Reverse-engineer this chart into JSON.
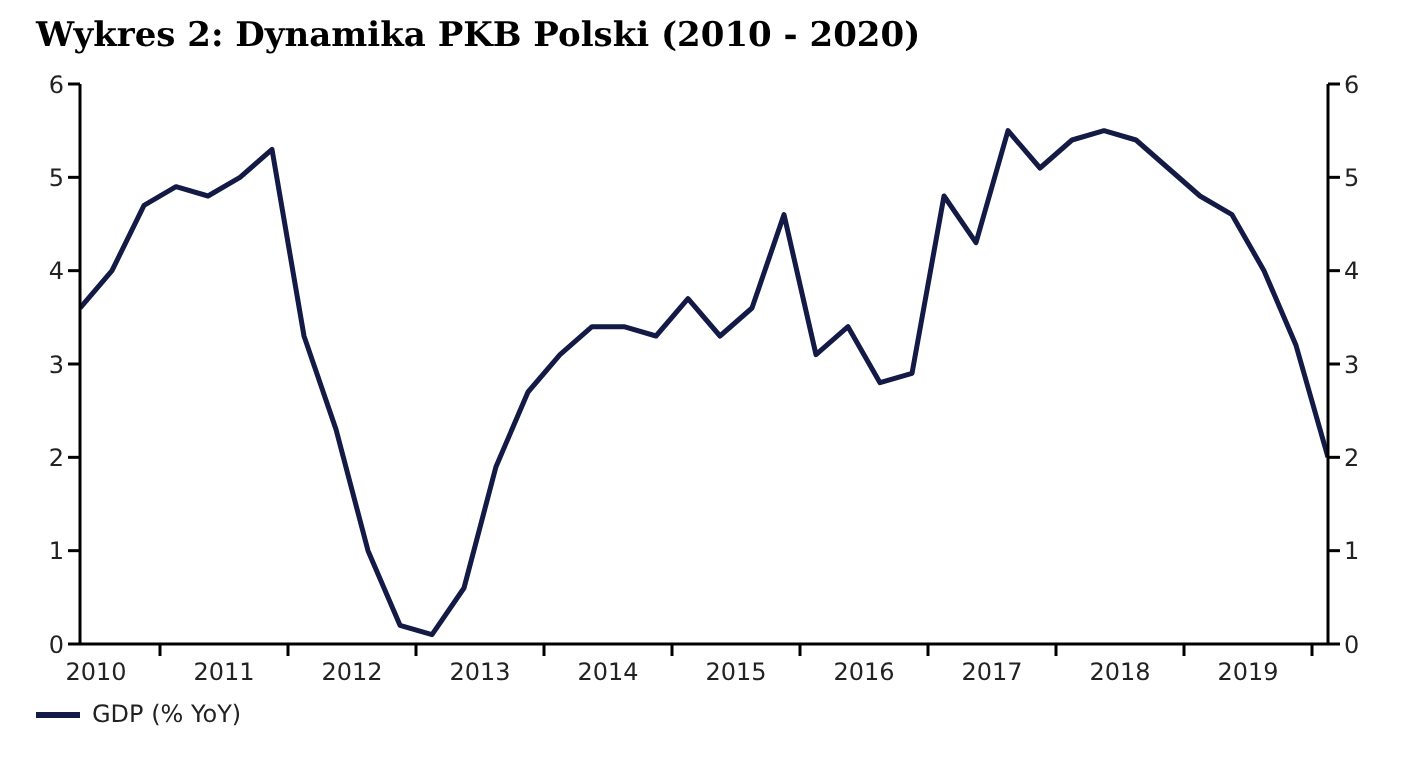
{
  "chart_data": {
    "type": "line",
    "title": "Wykres 2: Dynamika PKB Polski (2010 - 2020)",
    "x": [
      2010.375,
      2010.625,
      2010.875,
      2011.125,
      2011.375,
      2011.625,
      2011.875,
      2012.125,
      2012.375,
      2012.625,
      2012.875,
      2013.125,
      2013.375,
      2013.625,
      2013.875,
      2014.125,
      2014.375,
      2014.625,
      2014.875,
      2015.125,
      2015.375,
      2015.625,
      2015.875,
      2016.125,
      2016.375,
      2016.625,
      2016.875,
      2017.125,
      2017.375,
      2017.625,
      2017.875,
      2018.125,
      2018.375,
      2018.625,
      2018.875,
      2019.125,
      2019.375,
      2019.625,
      2019.875,
      2020.125
    ],
    "series": [
      {
        "name": "GDP (% YoY)",
        "color": "#121a45",
        "values": [
          3.6,
          4.0,
          4.7,
          4.9,
          4.8,
          5.0,
          5.3,
          3.3,
          2.3,
          1.0,
          0.2,
          0.1,
          0.6,
          1.9,
          2.7,
          3.1,
          3.4,
          3.4,
          3.3,
          3.7,
          3.3,
          3.6,
          4.6,
          3.1,
          3.4,
          2.8,
          2.9,
          4.8,
          4.3,
          5.5,
          5.1,
          5.4,
          5.5,
          5.4,
          5.1,
          4.8,
          4.6,
          4.0,
          3.2,
          2.0
        ]
      }
    ],
    "xlim": [
      2010.375,
      2020.125
    ],
    "xticks": [
      {
        "value": 2010.5,
        "label": "2010"
      },
      {
        "value": 2011,
        "label": null
      },
      {
        "value": 2011.5,
        "label": "2011"
      },
      {
        "value": 2012,
        "label": null
      },
      {
        "value": 2012.5,
        "label": "2012"
      },
      {
        "value": 2013,
        "label": null
      },
      {
        "value": 2013.5,
        "label": "2013"
      },
      {
        "value": 2014,
        "label": null
      },
      {
        "value": 2014.5,
        "label": "2014"
      },
      {
        "value": 2015,
        "label": null
      },
      {
        "value": 2015.5,
        "label": "2015"
      },
      {
        "value": 2016,
        "label": null
      },
      {
        "value": 2016.5,
        "label": "2016"
      },
      {
        "value": 2017,
        "label": null
      },
      {
        "value": 2017.5,
        "label": "2017"
      },
      {
        "value": 2018,
        "label": null
      },
      {
        "value": 2018.5,
        "label": "2018"
      },
      {
        "value": 2019,
        "label": null
      },
      {
        "value": 2019.5,
        "label": "2019"
      },
      {
        "value": 2020,
        "label": null
      }
    ],
    "ylim": [
      0,
      6
    ],
    "yticks": [
      0,
      1,
      2,
      3,
      4,
      5,
      6
    ],
    "y2lim": [
      0,
      6
    ],
    "y2ticks": [
      0,
      1,
      2,
      3,
      4,
      5,
      6
    ],
    "legend": "bottom left",
    "grid": false,
    "marker": "none",
    "line_style": "solid"
  }
}
